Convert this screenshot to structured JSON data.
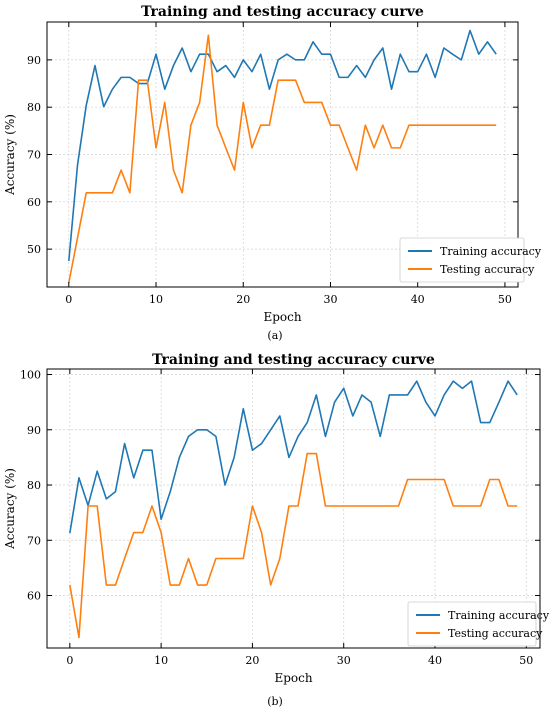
{
  "figure": {
    "captions": [
      "(a)",
      "(b)"
    ]
  },
  "chart_data": [
    {
      "type": "line",
      "title": "Training and testing accuracy curve",
      "xlabel": "Epoch",
      "ylabel": "Accuracy (%)",
      "xlim": [
        -2.5,
        51.5
      ],
      "ylim": [
        42,
        98
      ],
      "xticks": [
        0,
        10,
        20,
        30,
        40,
        50
      ],
      "yticks": [
        50,
        60,
        70,
        80,
        90
      ],
      "grid": true,
      "legend_position": "lower-right",
      "x": [
        0,
        1,
        2,
        3,
        4,
        5,
        6,
        7,
        8,
        9,
        10,
        11,
        12,
        13,
        14,
        15,
        16,
        17,
        18,
        19,
        20,
        21,
        22,
        23,
        24,
        25,
        26,
        27,
        28,
        29,
        30,
        31,
        32,
        33,
        34,
        35,
        36,
        37,
        38,
        39,
        40,
        41,
        42,
        43,
        44,
        45,
        46,
        47,
        48,
        49
      ],
      "series": [
        {
          "name": "Training accuracy",
          "color": "#1f77b4",
          "values": [
            47.5,
            67.8,
            80.4,
            88.8,
            80.1,
            83.8,
            86.3,
            86.3,
            85.0,
            85.0,
            91.2,
            83.8,
            88.8,
            92.5,
            87.5,
            91.2,
            91.2,
            87.5,
            88.8,
            86.3,
            90.0,
            87.5,
            91.2,
            83.8,
            90.0,
            91.2,
            90.0,
            90.0,
            93.8,
            91.2,
            91.2,
            86.3,
            86.3,
            88.8,
            86.3,
            90.0,
            92.5,
            83.8,
            91.2,
            87.5,
            87.5,
            91.2,
            86.3,
            92.5,
            91.2,
            90.0,
            96.2,
            91.2,
            93.8,
            91.2
          ]
        },
        {
          "name": "Testing accuracy",
          "color": "#ff7f0e",
          "values": [
            42.9,
            52.4,
            61.9,
            61.9,
            61.9,
            61.9,
            66.7,
            61.9,
            85.7,
            85.7,
            71.4,
            81.0,
            66.7,
            61.9,
            76.2,
            81.0,
            95.2,
            76.2,
            71.4,
            66.7,
            81.0,
            71.4,
            76.2,
            76.2,
            85.7,
            85.7,
            85.7,
            81.0,
            81.0,
            81.0,
            76.2,
            76.2,
            71.4,
            66.7,
            76.2,
            71.4,
            76.2,
            71.4,
            71.4,
            76.2,
            76.2,
            76.2,
            76.2,
            76.2,
            76.2,
            76.2,
            76.2,
            76.2,
            76.2,
            76.2
          ]
        }
      ]
    },
    {
      "type": "line",
      "title": "Training and testing accuracy curve",
      "xlabel": "Epoch",
      "ylabel": "Accuracy (%)",
      "xlim": [
        -2.5,
        51.5
      ],
      "ylim": [
        50.5,
        101
      ],
      "xticks": [
        0,
        10,
        20,
        30,
        40,
        50
      ],
      "yticks": [
        60,
        70,
        80,
        90,
        100
      ],
      "grid": true,
      "legend_position": "lower-right",
      "x": [
        0,
        1,
        2,
        3,
        4,
        5,
        6,
        7,
        8,
        9,
        10,
        11,
        12,
        13,
        14,
        15,
        16,
        17,
        18,
        19,
        20,
        21,
        22,
        23,
        24,
        25,
        26,
        27,
        28,
        29,
        30,
        31,
        32,
        33,
        34,
        35,
        36,
        37,
        38,
        39,
        40,
        41,
        42,
        43,
        44,
        45,
        46,
        47,
        48,
        49
      ],
      "series": [
        {
          "name": "Training accuracy",
          "color": "#1f77b4",
          "values": [
            71.3,
            81.3,
            76.3,
            82.5,
            77.5,
            78.8,
            87.5,
            81.3,
            86.3,
            86.3,
            73.8,
            78.8,
            85.0,
            88.8,
            90.0,
            90.0,
            88.8,
            80.0,
            85.0,
            93.8,
            86.3,
            87.5,
            90.0,
            92.5,
            85.0,
            88.8,
            91.3,
            96.3,
            88.8,
            95.0,
            97.5,
            92.5,
            96.3,
            95.0,
            88.8,
            96.3,
            96.3,
            96.3,
            98.8,
            95.0,
            92.5,
            96.3,
            98.8,
            97.5,
            98.8,
            91.3,
            91.3,
            95.0,
            98.8,
            96.3
          ]
        },
        {
          "name": "Testing accuracy",
          "color": "#ff7f0e",
          "values": [
            61.9,
            52.4,
            76.2,
            76.2,
            61.9,
            61.9,
            66.7,
            71.4,
            71.4,
            76.2,
            71.4,
            61.9,
            61.9,
            66.7,
            61.9,
            61.9,
            66.7,
            66.7,
            66.7,
            66.7,
            76.2,
            71.4,
            61.9,
            66.7,
            76.2,
            76.2,
            85.7,
            85.7,
            76.2,
            76.2,
            76.2,
            76.2,
            76.2,
            76.2,
            76.2,
            76.2,
            76.2,
            81.0,
            81.0,
            81.0,
            81.0,
            81.0,
            76.2,
            76.2,
            76.2,
            76.2,
            81.0,
            81.0,
            76.2,
            76.2
          ]
        }
      ]
    }
  ]
}
